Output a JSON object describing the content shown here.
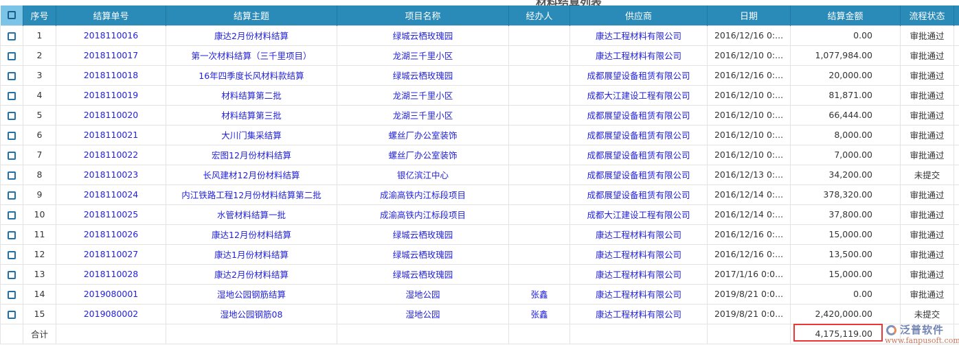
{
  "page_title": "材料结算列表",
  "columns": [
    "序号",
    "结算单号",
    "结算主题",
    "项目名称",
    "经办人",
    "供应商",
    "日期",
    "结算金额",
    "流程状态"
  ],
  "rows": [
    [
      "1",
      "2018110016",
      "康达2月份材料结算",
      "绿城云栖玫瑰园",
      "",
      "康达工程材料有限公司",
      "2016/12/16 0:...",
      "0.00",
      "审批通过"
    ],
    [
      "2",
      "2018110017",
      "第一次材料结算（三千里项目）",
      "龙湖三千里小区",
      "",
      "康达工程材料有限公司",
      "2016/12/10 0:...",
      "1,077,984.00",
      "审批通过"
    ],
    [
      "3",
      "2018110018",
      "16年四季度长风材料款结算",
      "绿城云栖玫瑰园",
      "",
      "成都展望设备租赁有限公司",
      "2016/12/16 0:...",
      "20,000.00",
      "审批通过"
    ],
    [
      "4",
      "2018110019",
      "材料结算第二批",
      "龙湖三千里小区",
      "",
      "成都大江建设工程有限公司",
      "2016/12/10 0:...",
      "81,871.00",
      "审批通过"
    ],
    [
      "5",
      "2018110020",
      "材料结算第三批",
      "龙湖三千里小区",
      "",
      "成都展望设备租赁有限公司",
      "2016/12/10 0:...",
      "66,444.00",
      "审批通过"
    ],
    [
      "6",
      "2018110021",
      "大川门集采结算",
      "螺丝厂办公室装饰",
      "",
      "成都展望设备租赁有限公司",
      "2016/12/10 0:...",
      "8,000.00",
      "审批通过"
    ],
    [
      "7",
      "2018110022",
      "宏图12月份材料结算",
      "螺丝厂办公室装饰",
      "",
      "成都展望设备租赁有限公司",
      "2016/12/10 0:...",
      "7,000.00",
      "审批通过"
    ],
    [
      "8",
      "2018110023",
      "长风建材12月份材料结算",
      "银亿滨江中心",
      "",
      "成都展望设备租赁有限公司",
      "2016/12/13 0:...",
      "34,200.00",
      "未提交"
    ],
    [
      "9",
      "2018110024",
      "内江铁路工程12月份材料结算第二批",
      "成渝高铁内江标段项目",
      "",
      "成都展望设备租赁有限公司",
      "2016/12/14 0:...",
      "378,320.00",
      "审批通过"
    ],
    [
      "10",
      "2018110025",
      "水管材料结算一批",
      "成渝高铁内江标段项目",
      "",
      "成都大江建设工程有限公司",
      "2016/12/14 0:...",
      "37,800.00",
      "审批通过"
    ],
    [
      "11",
      "2018110026",
      "康达12月份材料结算",
      "绿城云栖玫瑰园",
      "",
      "康达工程材料有限公司",
      "2016/12/16 0:...",
      "15,000.00",
      "审批通过"
    ],
    [
      "12",
      "2018110027",
      "康达1月份材料结算",
      "绿城云栖玫瑰园",
      "",
      "康达工程材料有限公司",
      "2016/12/16 0:...",
      "13,500.00",
      "审批通过"
    ],
    [
      "13",
      "2018110028",
      "康达2月份材料结算",
      "绿城云栖玫瑰园",
      "",
      "康达工程材料有限公司",
      "2017/1/16 0:0...",
      "15,000.00",
      "审批通过"
    ],
    [
      "14",
      "2019080001",
      "湿地公园钢筋结算",
      "湿地公园",
      "张鑫",
      "康达工程材料有限公司",
      "2019/8/21 0:0...",
      "0.00",
      "审批通过"
    ],
    [
      "15",
      "2019080002",
      "湿地公园钢筋08",
      "湿地公园",
      "张鑫",
      "康达工程材料有限公司",
      "2019/8/21 0:0...",
      "2,420,000.00",
      "未提交"
    ]
  ],
  "footer": {
    "label": "合计",
    "total": "4,175,119.00"
  },
  "watermark": {
    "name": "泛普软件",
    "url": "www.fanpusoft.com"
  },
  "colors": {
    "header": "#2a8ab8",
    "link": "#2222dd",
    "highlight": "#ee3333"
  }
}
